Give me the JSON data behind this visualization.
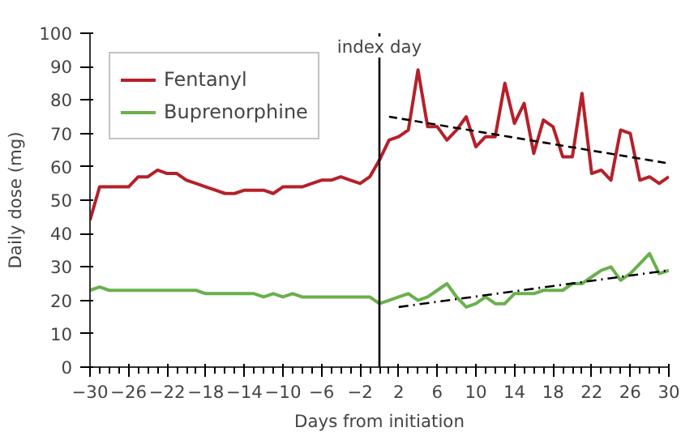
{
  "chart_data": {
    "type": "line",
    "xlabel": "Days from initiation",
    "ylabel": "Daily dose (mg)",
    "x": [
      -30,
      -29,
      -28,
      -27,
      -26,
      -25,
      -24,
      -23,
      -22,
      -21,
      -20,
      -19,
      -18,
      -17,
      -16,
      -15,
      -14,
      -13,
      -12,
      -11,
      -10,
      -9,
      -8,
      -7,
      -6,
      -5,
      -4,
      -3,
      -2,
      -1,
      0,
      1,
      2,
      3,
      4,
      5,
      6,
      7,
      8,
      9,
      10,
      11,
      12,
      13,
      14,
      15,
      16,
      17,
      18,
      19,
      20,
      21,
      22,
      23,
      24,
      25,
      26,
      27,
      28,
      29,
      30
    ],
    "series": [
      {
        "name": "Fentanyl",
        "color": "#b5202a",
        "values": [
          44,
          54,
          54,
          54,
          54,
          57,
          57,
          59,
          58,
          58,
          56,
          55,
          54,
          53,
          52,
          52,
          53,
          53,
          53,
          52,
          54,
          54,
          54,
          55,
          56,
          56,
          57,
          56,
          55,
          57,
          62,
          68,
          69,
          71,
          89,
          72,
          72,
          68,
          71,
          75,
          66,
          69,
          69,
          85,
          73,
          79,
          64,
          74,
          72,
          63,
          63,
          82,
          58,
          59,
          56,
          71,
          70,
          56,
          57,
          55,
          57
        ]
      },
      {
        "name": "Buprenorphine",
        "color": "#6ab04c",
        "values": [
          23,
          24,
          23,
          23,
          23,
          23,
          23,
          23,
          23,
          23,
          23,
          23,
          22,
          22,
          22,
          22,
          22,
          22,
          21,
          22,
          21,
          22,
          21,
          21,
          21,
          21,
          21,
          21,
          21,
          21,
          19,
          20,
          21,
          22,
          20,
          21,
          23,
          25,
          21,
          18,
          19,
          21,
          19,
          19,
          22,
          22,
          22,
          23,
          23,
          23,
          25,
          25,
          27,
          29,
          30,
          26,
          28,
          31,
          34,
          28,
          29
        ]
      },
      {
        "x": [
          1,
          30
        ],
        "color": "#000000",
        "line_style": "dashed",
        "values": [
          75,
          61
        ]
      },
      {
        "x": [
          2,
          30
        ],
        "color": "#000000",
        "line_style": "dashdot",
        "values": [
          18,
          29
        ]
      }
    ],
    "xlim": [
      -30,
      30
    ],
    "xticks": [
      -30,
      -26,
      -22,
      -18,
      -14,
      -10,
      -6,
      -2,
      2,
      6,
      10,
      14,
      18,
      22,
      26,
      30
    ],
    "ylim": [
      0,
      100
    ],
    "yticks": [
      0,
      10,
      20,
      30,
      40,
      50,
      60,
      70,
      80,
      90,
      100
    ],
    "ref_lines": [
      {
        "axis": "x",
        "value": 0,
        "label": "index day",
        "color": "#000000"
      }
    ],
    "grid": false,
    "legend": "top left",
    "marker": "none",
    "line_style": "solid"
  }
}
